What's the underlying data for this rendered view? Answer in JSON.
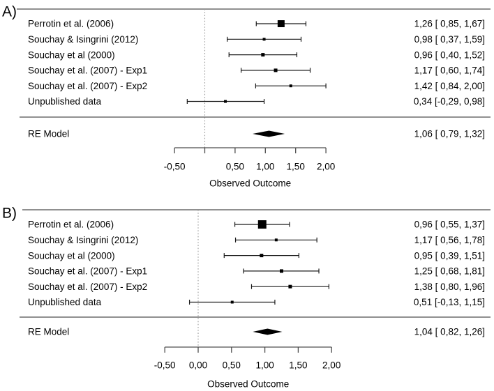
{
  "figure": {
    "axis_title": "Observed Outcome"
  },
  "chart_data": [
    {
      "type": "forest",
      "panel_label": "A)",
      "xlabel": "Observed Outcome",
      "xlim": [
        -0.5,
        2.0
      ],
      "x_ticks": [
        -0.5,
        0.0,
        0.5,
        1.0,
        1.5,
        2.0
      ],
      "x_tick_labels": [
        "-0,50",
        "",
        "0,50",
        "1,00",
        "1,50",
        "2,00"
      ],
      "zero_line": 0.0,
      "legend": "none",
      "grid": false,
      "studies": [
        {
          "label": "Perrotin et al. (2006)",
          "estimate": 1.26,
          "ci_low": 0.85,
          "ci_high": 1.67,
          "annotation": "1,26 [ 0,85, 1,67]"
        },
        {
          "label": "Souchay & Isingrini (2012)",
          "estimate": 0.98,
          "ci_low": 0.37,
          "ci_high": 1.59,
          "annotation": "0,98 [ 0,37, 1,59]"
        },
        {
          "label": "Souchay et al (2000)",
          "estimate": 0.96,
          "ci_low": 0.4,
          "ci_high": 1.52,
          "annotation": "0,96 [ 0,40, 1,52]"
        },
        {
          "label": "Souchay et al. (2007) - Exp1",
          "estimate": 1.17,
          "ci_low": 0.6,
          "ci_high": 1.74,
          "annotation": "1,17 [ 0,60, 1,74]"
        },
        {
          "label": "Souchay et al. (2007) - Exp2",
          "estimate": 1.42,
          "ci_low": 0.84,
          "ci_high": 2.0,
          "annotation": "1,42 [ 0,84, 2,00]"
        },
        {
          "label": "Unpublished data",
          "estimate": 0.34,
          "ci_low": -0.29,
          "ci_high": 0.98,
          "annotation": "0,34 [-0,29, 0,98]"
        }
      ],
      "box_sizes": [
        10,
        4,
        5,
        5,
        4,
        4
      ],
      "summary": {
        "label": "RE Model",
        "estimate": 1.06,
        "ci_low": 0.79,
        "ci_high": 1.32,
        "annotation": "1,06 [ 0,79, 1,32]"
      }
    },
    {
      "type": "forest",
      "panel_label": "B)",
      "xlabel": "Observed Outcome",
      "xlim": [
        -0.5,
        2.0
      ],
      "x_ticks": [
        -0.5,
        0.0,
        0.5,
        1.0,
        1.5,
        2.0
      ],
      "x_tick_labels": [
        "-0,50",
        "0,00",
        "0,50",
        "1,00",
        "1,50",
        "2,00"
      ],
      "zero_line": 0.0,
      "legend": "none",
      "grid": false,
      "studies": [
        {
          "label": "Perrotin et al. (2006)",
          "estimate": 0.96,
          "ci_low": 0.55,
          "ci_high": 1.37,
          "annotation": "0,96 [ 0,55, 1,37]"
        },
        {
          "label": "Souchay & Isingrini (2012)",
          "estimate": 1.17,
          "ci_low": 0.56,
          "ci_high": 1.78,
          "annotation": "1,17 [ 0,56, 1,78]"
        },
        {
          "label": "Souchay et al (2000)",
          "estimate": 0.95,
          "ci_low": 0.39,
          "ci_high": 1.51,
          "annotation": "0,95 [ 0,39, 1,51]"
        },
        {
          "label": "Souchay et al. (2007) - Exp1",
          "estimate": 1.25,
          "ci_low": 0.68,
          "ci_high": 1.81,
          "annotation": "1,25 [ 0,68, 1,81]"
        },
        {
          "label": "Souchay et al. (2007) - Exp2",
          "estimate": 1.38,
          "ci_low": 0.8,
          "ci_high": 1.96,
          "annotation": "1,38 [ 0,80, 1,96]"
        },
        {
          "label": "Unpublished data",
          "estimate": 0.51,
          "ci_low": -0.13,
          "ci_high": 1.15,
          "annotation": "0,51 [-0,13, 1,15]"
        }
      ],
      "box_sizes": [
        12,
        4,
        5,
        5,
        5,
        4
      ],
      "summary": {
        "label": "RE Model",
        "estimate": 1.04,
        "ci_low": 0.82,
        "ci_high": 1.26,
        "annotation": "1,04 [ 0,82, 1,26]"
      }
    }
  ]
}
